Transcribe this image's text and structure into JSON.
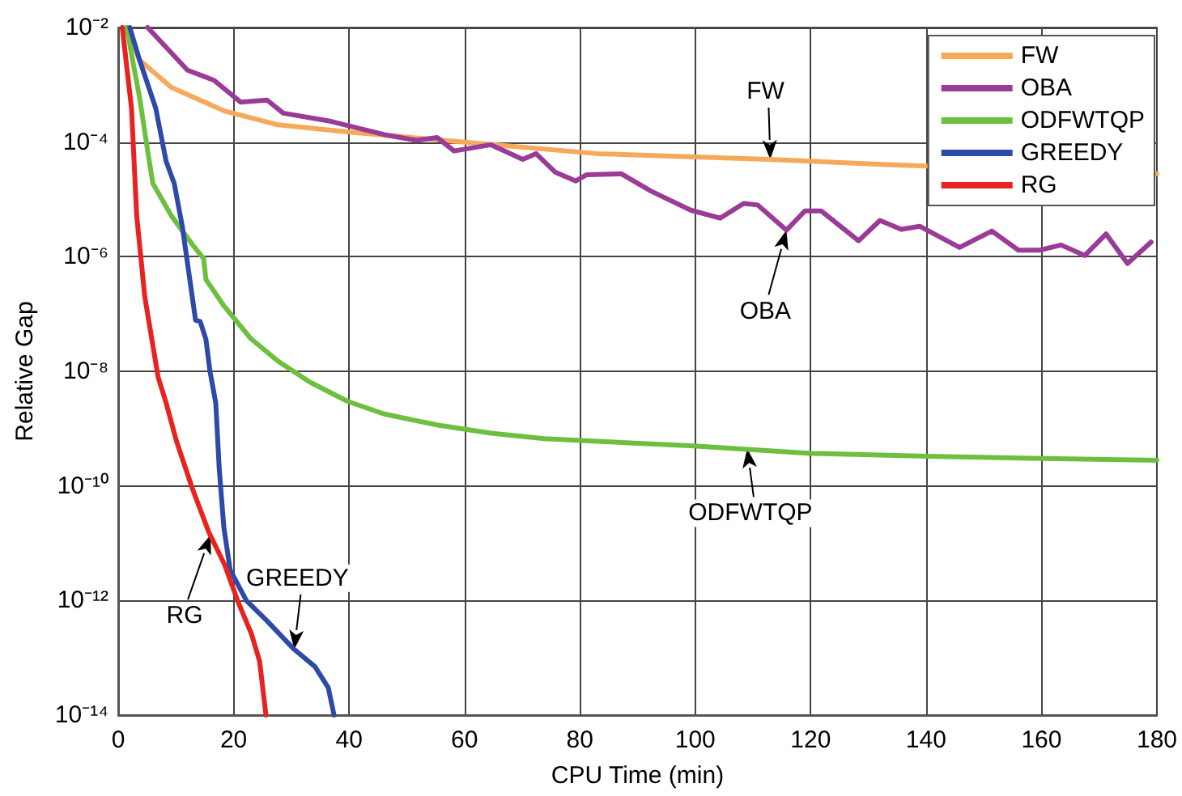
{
  "chart_data": {
    "type": "line",
    "xlabel": "CPU Time (min)",
    "ylabel": "Relative Gap",
    "log": "y",
    "grid": true,
    "legend": "top right",
    "marker": "none",
    "line_style": "solid",
    "xlim": [
      0,
      180
    ],
    "xticks": [
      0,
      20,
      40,
      60,
      80,
      100,
      120,
      140,
      160,
      180
    ],
    "ylim": [
      1e-14,
      0.01
    ],
    "yticks": [
      {
        "value": 1e-14,
        "label": "10⁻¹⁴"
      },
      {
        "value": 1e-12,
        "label": "10⁻¹²"
      },
      {
        "value": 1e-10,
        "label": "10⁻¹⁰"
      },
      {
        "value": 1e-08,
        "label": "10⁻⁸"
      },
      {
        "value": 1e-06,
        "label": "10⁻⁶"
      },
      {
        "value": 0.0001,
        "label": "10⁻⁴"
      },
      {
        "value": 0.01,
        "label": "10⁻²"
      }
    ],
    "series": [
      {
        "name": "FW",
        "color": "#f5a95a",
        "x": [
          1.2,
          3.7,
          9.2,
          18.4,
          27.7,
          40,
          60,
          83,
          112.6,
          134,
          180
        ],
        "values": [
          0.01,
          0.0027,
          0.0009,
          0.00035,
          0.0002,
          0.00015,
          0.0001,
          6.3e-05,
          5e-05,
          4e-05,
          2.8e-05
        ]
      },
      {
        "name": "OBA",
        "color": "#9b3b98",
        "x": [
          5.1,
          12,
          16.6,
          21.2,
          25.8,
          28.6,
          36.9,
          46.1,
          51.7,
          55.3,
          58.2,
          64.6,
          70.1,
          72.4,
          75.7,
          79.3,
          81.2,
          87.2,
          92.3,
          99.2,
          104.3,
          108.4,
          110.8,
          115.8,
          119,
          121.8,
          128.3,
          132,
          135.7,
          138.9,
          145.8,
          151.4,
          156,
          159.7,
          163.4,
          167.5,
          171.2,
          174.9,
          179
        ],
        "values": [
          0.01,
          0.0018,
          0.0012,
          0.0005,
          0.00054,
          0.00032,
          0.00023,
          0.000135,
          0.000107,
          0.00012,
          7e-05,
          9e-05,
          5e-05,
          6.3e-05,
          3e-05,
          2.1e-05,
          2.7e-05,
          2.8e-05,
          1.4e-05,
          6.5e-06,
          4.7e-06,
          8.5e-06,
          8e-06,
          2.9e-06,
          6.3e-06,
          6.3e-06,
          1.9e-06,
          4.3e-06,
          3e-06,
          3.4e-06,
          1.45e-06,
          2.8e-06,
          1.3e-06,
          1.3e-06,
          1.6e-06,
          1.05e-06,
          2.5e-06,
          7.6e-07,
          1.8e-06
        ]
      },
      {
        "name": "ODFWTQP",
        "color": "#6cbf3f",
        "x": [
          1.5,
          2.3,
          3.7,
          5.1,
          6,
          9.2,
          12.9,
          14.8,
          15.2,
          18.4,
          23,
          27.7,
          33.2,
          39.7,
          46.1,
          55.4,
          64.6,
          73.8,
          83,
          99.7,
          120,
          140.3,
          160.6,
          180
        ],
        "values": [
          0.01,
          0.0034,
          0.0006,
          7e-05,
          1.9e-05,
          5.2e-06,
          1.6e-06,
          9.3e-07,
          4e-07,
          1.35e-07,
          3.7e-08,
          1.5e-08,
          6.5e-09,
          3e-09,
          1.8e-09,
          1.15e-09,
          8.3e-10,
          6.7e-10,
          6e-10,
          5e-10,
          3.7e-10,
          3.3e-10,
          3e-10,
          2.8e-10
        ]
      },
      {
        "name": "GREEDY",
        "color": "#2e4aa8",
        "x": [
          2,
          3.7,
          6.5,
          8.3,
          9.7,
          11.1,
          12.4,
          13.4,
          14.2,
          15.2,
          15.9,
          16.9,
          17.5,
          18.3,
          19.4,
          22.2,
          25.8,
          30.5,
          34.1,
          36.4,
          37.4
        ],
        "values": [
          0.01,
          0.0027,
          0.00039,
          4.6e-05,
          1.9e-05,
          3.4e-06,
          4e-07,
          7.8e-08,
          7.4e-08,
          3.6e-08,
          1e-08,
          2.8e-09,
          2e-10,
          1.9e-11,
          3.4e-12,
          1e-12,
          4.4e-13,
          1.4e-13,
          7e-14,
          3e-14,
          1e-14
        ]
      },
      {
        "name": "RG",
        "color": "#e8231f",
        "x": [
          0.7,
          2.3,
          3.2,
          4.6,
          6.9,
          8.3,
          10.1,
          12.9,
          15.7,
          18.4,
          20.8,
          23.1,
          24.5,
          25.6
        ],
        "values": [
          0.01,
          0.00039,
          5.2e-06,
          2e-07,
          8e-09,
          2.8e-09,
          6e-10,
          8.7e-11,
          1.55e-11,
          4.3e-12,
          9.3e-13,
          2.6e-13,
          8.7e-14,
          1e-14
        ]
      }
    ],
    "annotations": [
      {
        "text": "FW",
        "x": 113,
        "y": 5e-05
      },
      {
        "text": "OBA",
        "x": 115.8,
        "y": 2.9e-06
      },
      {
        "text": "ODFWTQP",
        "x": 109,
        "y": 4.5e-10
      },
      {
        "text": "RG",
        "x": 16,
        "y": 1.4e-11
      },
      {
        "text": "GREEDY",
        "x": 30.5,
        "y": 1.4e-13
      }
    ]
  }
}
